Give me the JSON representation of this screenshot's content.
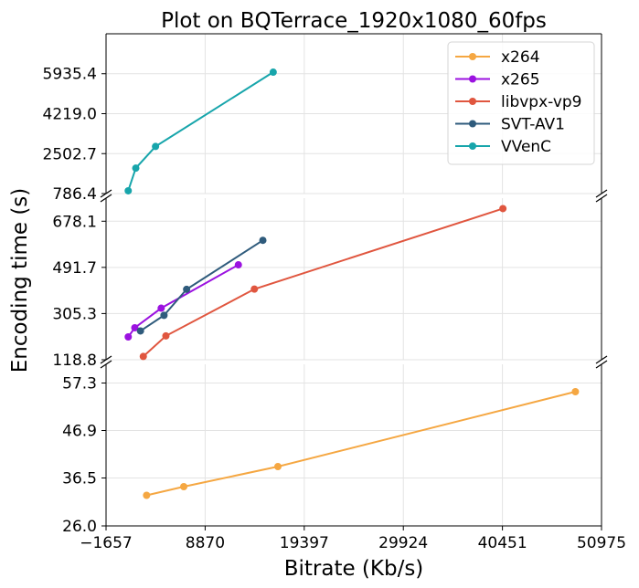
{
  "chart_data": {
    "type": "line",
    "title": "Plot on BQTerrace_1920x1080_60fps",
    "xlabel": "Bitrate (Kb/s)",
    "ylabel": "Encoding time (s)",
    "xlim": [
      -1657,
      50975
    ],
    "x_ticks": [
      "−1657",
      "8870",
      "19397",
      "29924",
      "40451",
      "50975"
    ],
    "x_tick_values": [
      -1657,
      8870,
      19397,
      29924,
      40451,
      50975
    ],
    "grid": true,
    "legend_position": "top-right",
    "panels": [
      {
        "id": "top",
        "ylim": [
          786.4,
          7651.7
        ],
        "y_ticks": [
          "786.4",
          "2502.7",
          "4219.0",
          "5935.4"
        ],
        "y_tick_values": [
          786.4,
          2502.7,
          4219.0,
          5935.4
        ]
      },
      {
        "id": "middle",
        "ylim": [
          118.8,
          771.3
        ],
        "y_ticks": [
          "118.8",
          "305.3",
          "491.7",
          "678.1"
        ],
        "y_tick_values": [
          118.8,
          305.3,
          491.7,
          678.1
        ]
      },
      {
        "id": "bottom",
        "ylim": [
          26.0,
          61.4
        ],
        "y_ticks": [
          "26.0",
          "36.5",
          "46.9",
          "57.3"
        ],
        "y_tick_values": [
          26.0,
          36.5,
          46.9,
          57.3
        ]
      }
    ],
    "series": [
      {
        "name": "x264",
        "color": "#f5a742",
        "panel": "bottom",
        "x": [
          2650,
          6600,
          16600,
          48200
        ],
        "y": [
          32.7,
          34.6,
          39.0,
          55.4
        ]
      },
      {
        "name": "x265",
        "color": "#9b12e0",
        "panel": "middle",
        "x": [
          700,
          1400,
          4200,
          12400
        ],
        "y": [
          211,
          248,
          327,
          502
        ]
      },
      {
        "name": "libvpx-vp9",
        "color": "#e0563f",
        "panel": "middle",
        "x": [
          2300,
          4700,
          14100,
          40500
        ],
        "y": [
          132,
          215,
          404,
          729
        ]
      },
      {
        "name": "SVT-AV1",
        "color": "#2f5b7c",
        "panel": "middle",
        "x": [
          2000,
          4500,
          6900,
          15000
        ],
        "y": [
          235,
          298,
          403,
          601
        ]
      },
      {
        "name": "VVenC",
        "color": "#17a5ab",
        "panel": "top",
        "x": [
          700,
          1500,
          3600,
          16100
        ],
        "y": [
          906,
          1879,
          2811,
          6003
        ]
      }
    ]
  }
}
